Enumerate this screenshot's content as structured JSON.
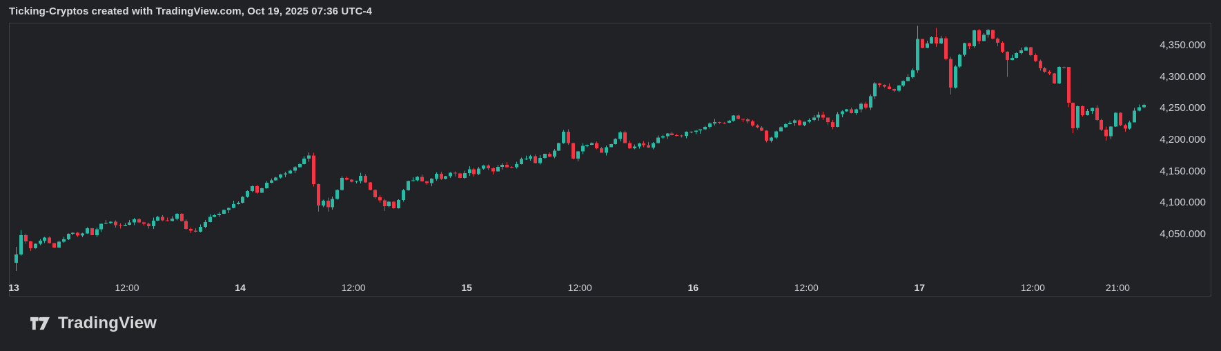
{
  "header": {
    "title": "Ticking-Cryptos created with TradingView.com, Oct 19, 2025 07:36 UTC-4"
  },
  "footer": {
    "logo_text": "TradingView"
  },
  "chart_data": {
    "type": "candlestick",
    "title": "Ticking-Cryptos created with TradingView.com, Oct 19, 2025 07:36 UTC-4",
    "interval_minutes": 30,
    "grid": "off",
    "legend": "none",
    "price_axis": {
      "side": "right",
      "labels": [
        "4,350.000",
        "4,300.000",
        "4,250.000",
        "4,200.000",
        "4,150.000",
        "4,100.000",
        "4,050.000"
      ],
      "values": [
        4350,
        4300,
        4250,
        4200,
        4150,
        4100,
        4050
      ],
      "visible_range": [
        3952,
        4386
      ]
    },
    "time_axis": {
      "zero_label": "Oct 13 00:00",
      "visible_hour_range": [
        0,
        120
      ],
      "labels": [
        {
          "label": "13",
          "hour": 0,
          "major": true
        },
        {
          "label": "12:00",
          "hour": 12,
          "major": false
        },
        {
          "label": "14",
          "hour": 24,
          "major": true
        },
        {
          "label": "12:00",
          "hour": 36,
          "major": false
        },
        {
          "label": "15",
          "hour": 48,
          "major": true
        },
        {
          "label": "12:00",
          "hour": 60,
          "major": false
        },
        {
          "label": "16",
          "hour": 72,
          "major": true
        },
        {
          "label": "12:00",
          "hour": 84,
          "major": false
        },
        {
          "label": "17",
          "hour": 96,
          "major": true
        },
        {
          "label": "12:00",
          "hour": 108,
          "major": false
        },
        {
          "label": "21:00",
          "hour": 117,
          "major": false
        }
      ]
    },
    "colors": {
      "up": "#2bbaa5",
      "down": "#f23645",
      "background": "#212225",
      "border": "#3c4044",
      "label_text": "#ced2d9",
      "title_text": "#d9dadc",
      "logo_text": "#d5d6d8"
    },
    "series_anchors": [
      [
        0,
        4005
      ],
      [
        0.5,
        4018
      ],
      [
        1,
        4048
      ],
      [
        1.5,
        4040
      ],
      [
        2,
        4028
      ],
      [
        3,
        4040
      ],
      [
        3.5,
        4047
      ],
      [
        4,
        4038
      ],
      [
        4.5,
        4030
      ],
      [
        5.5,
        4044
      ],
      [
        6.5,
        4055
      ],
      [
        7,
        4048
      ],
      [
        8,
        4058
      ],
      [
        8.5,
        4050
      ],
      [
        9.5,
        4065
      ],
      [
        10.5,
        4072
      ],
      [
        11,
        4065
      ],
      [
        12,
        4066
      ],
      [
        13,
        4072
      ],
      [
        14.5,
        4064
      ],
      [
        15.5,
        4078
      ],
      [
        16.5,
        4070
      ],
      [
        17.5,
        4081
      ],
      [
        18.5,
        4060
      ],
      [
        19.5,
        4055
      ],
      [
        20.5,
        4072
      ],
      [
        21.5,
        4080
      ],
      [
        22.5,
        4090
      ],
      [
        24,
        4102
      ],
      [
        25,
        4118
      ],
      [
        25.5,
        4125
      ],
      [
        26,
        4116
      ],
      [
        27,
        4133
      ],
      [
        28,
        4142
      ],
      [
        29.5,
        4150
      ],
      [
        30.5,
        4160
      ],
      [
        31,
        4170
      ],
      [
        31.5,
        4176
      ],
      [
        32,
        4130
      ],
      [
        32.5,
        4095
      ],
      [
        33,
        4105
      ],
      [
        33.5,
        4092
      ],
      [
        34.5,
        4120
      ],
      [
        35,
        4138
      ],
      [
        36,
        4132
      ],
      [
        37,
        4142
      ],
      [
        37.5,
        4133
      ],
      [
        38.5,
        4110
      ],
      [
        39.5,
        4096
      ],
      [
        40,
        4102
      ],
      [
        40.5,
        4092
      ],
      [
        41.5,
        4120
      ],
      [
        42,
        4135
      ],
      [
        43,
        4140
      ],
      [
        44,
        4132
      ],
      [
        45,
        4145
      ],
      [
        45.5,
        4138
      ],
      [
        46.5,
        4150
      ],
      [
        47.5,
        4142
      ],
      [
        48.5,
        4155
      ],
      [
        49,
        4147
      ],
      [
        50,
        4158
      ],
      [
        51,
        4150
      ],
      [
        52,
        4160
      ],
      [
        53,
        4155
      ],
      [
        54,
        4168
      ],
      [
        55,
        4175
      ],
      [
        55.5,
        4162
      ],
      [
        56.5,
        4178
      ],
      [
        57,
        4172
      ],
      [
        58,
        4195
      ],
      [
        58.5,
        4215
      ],
      [
        59.5,
        4172
      ],
      [
        60.5,
        4190
      ],
      [
        61.5,
        4196
      ],
      [
        62.5,
        4180
      ],
      [
        63.5,
        4195
      ],
      [
        64.5,
        4210
      ],
      [
        65,
        4196
      ],
      [
        65.5,
        4186
      ],
      [
        66.5,
        4196
      ],
      [
        67.5,
        4188
      ],
      [
        68.5,
        4205
      ],
      [
        69.5,
        4210
      ],
      [
        70.5,
        4205
      ],
      [
        71.5,
        4212
      ],
      [
        72.5,
        4215
      ],
      [
        73.5,
        4222
      ],
      [
        74.5,
        4230
      ],
      [
        75.5,
        4226
      ],
      [
        76.5,
        4237
      ],
      [
        77.5,
        4232
      ],
      [
        78.5,
        4225
      ],
      [
        79.5,
        4215
      ],
      [
        80,
        4198
      ],
      [
        81,
        4212
      ],
      [
        82,
        4225
      ],
      [
        83,
        4230
      ],
      [
        83.5,
        4222
      ],
      [
        84.5,
        4232
      ],
      [
        85.5,
        4238
      ],
      [
        86.5,
        4230
      ],
      [
        87,
        4223
      ],
      [
        87.5,
        4240
      ],
      [
        88.5,
        4248
      ],
      [
        89,
        4243
      ],
      [
        90,
        4258
      ],
      [
        90.5,
        4252
      ],
      [
        91.5,
        4291
      ],
      [
        92.5,
        4284
      ],
      [
        93.5,
        4278
      ],
      [
        94.5,
        4292
      ],
      [
        95.5,
        4310
      ],
      [
        96,
        4360
      ],
      [
        96.5,
        4345
      ],
      [
        97.5,
        4365
      ],
      [
        98,
        4352
      ],
      [
        98.5,
        4362
      ],
      [
        99,
        4330
      ],
      [
        99.5,
        4285
      ],
      [
        100,
        4315
      ],
      [
        101,
        4355
      ],
      [
        101.5,
        4348
      ],
      [
        102,
        4372
      ],
      [
        102.5,
        4358
      ],
      [
        103.5,
        4373
      ],
      [
        104,
        4362
      ],
      [
        104.5,
        4352
      ],
      [
        105,
        4342
      ],
      [
        105.5,
        4325
      ],
      [
        106.5,
        4338
      ],
      [
        107.5,
        4348
      ],
      [
        108,
        4335
      ],
      [
        109,
        4312
      ],
      [
        110,
        4305
      ],
      [
        110.5,
        4290
      ],
      [
        111,
        4315
      ],
      [
        111.5,
        4318
      ],
      [
        112,
        4260
      ],
      [
        112.5,
        4218
      ],
      [
        113,
        4255
      ],
      [
        113.5,
        4240
      ],
      [
        114.5,
        4252
      ],
      [
        115,
        4230
      ],
      [
        115.5,
        4218
      ],
      [
        116,
        4205
      ],
      [
        116.5,
        4222
      ],
      [
        117,
        4243
      ],
      [
        117.5,
        4222
      ],
      [
        118,
        4218
      ],
      [
        118.5,
        4228
      ],
      [
        119,
        4245
      ],
      [
        119.5,
        4253
      ],
      [
        120,
        4255
      ]
    ],
    "wick_extremes": [
      [
        0.5,
        4030,
        3992
      ],
      [
        1,
        4057,
        4042
      ],
      [
        31.5,
        4180,
        4169
      ],
      [
        32.5,
        4118,
        4086
      ],
      [
        33.5,
        4100,
        4086
      ],
      [
        39.5,
        4100,
        4087
      ],
      [
        58.5,
        4216,
        4195
      ],
      [
        80,
        4210,
        4196
      ],
      [
        87,
        4232,
        4222
      ],
      [
        96,
        4381,
        4320
      ],
      [
        98,
        4378,
        4348
      ],
      [
        99.5,
        4332,
        4272
      ],
      [
        105.5,
        4338,
        4300
      ],
      [
        112,
        4315,
        4252
      ],
      [
        112.5,
        4258,
        4211
      ],
      [
        116,
        4214,
        4199
      ]
    ],
    "noise": {
      "seed": 42,
      "close_jitter": 2.2,
      "wick_jitter": 3.0
    }
  }
}
